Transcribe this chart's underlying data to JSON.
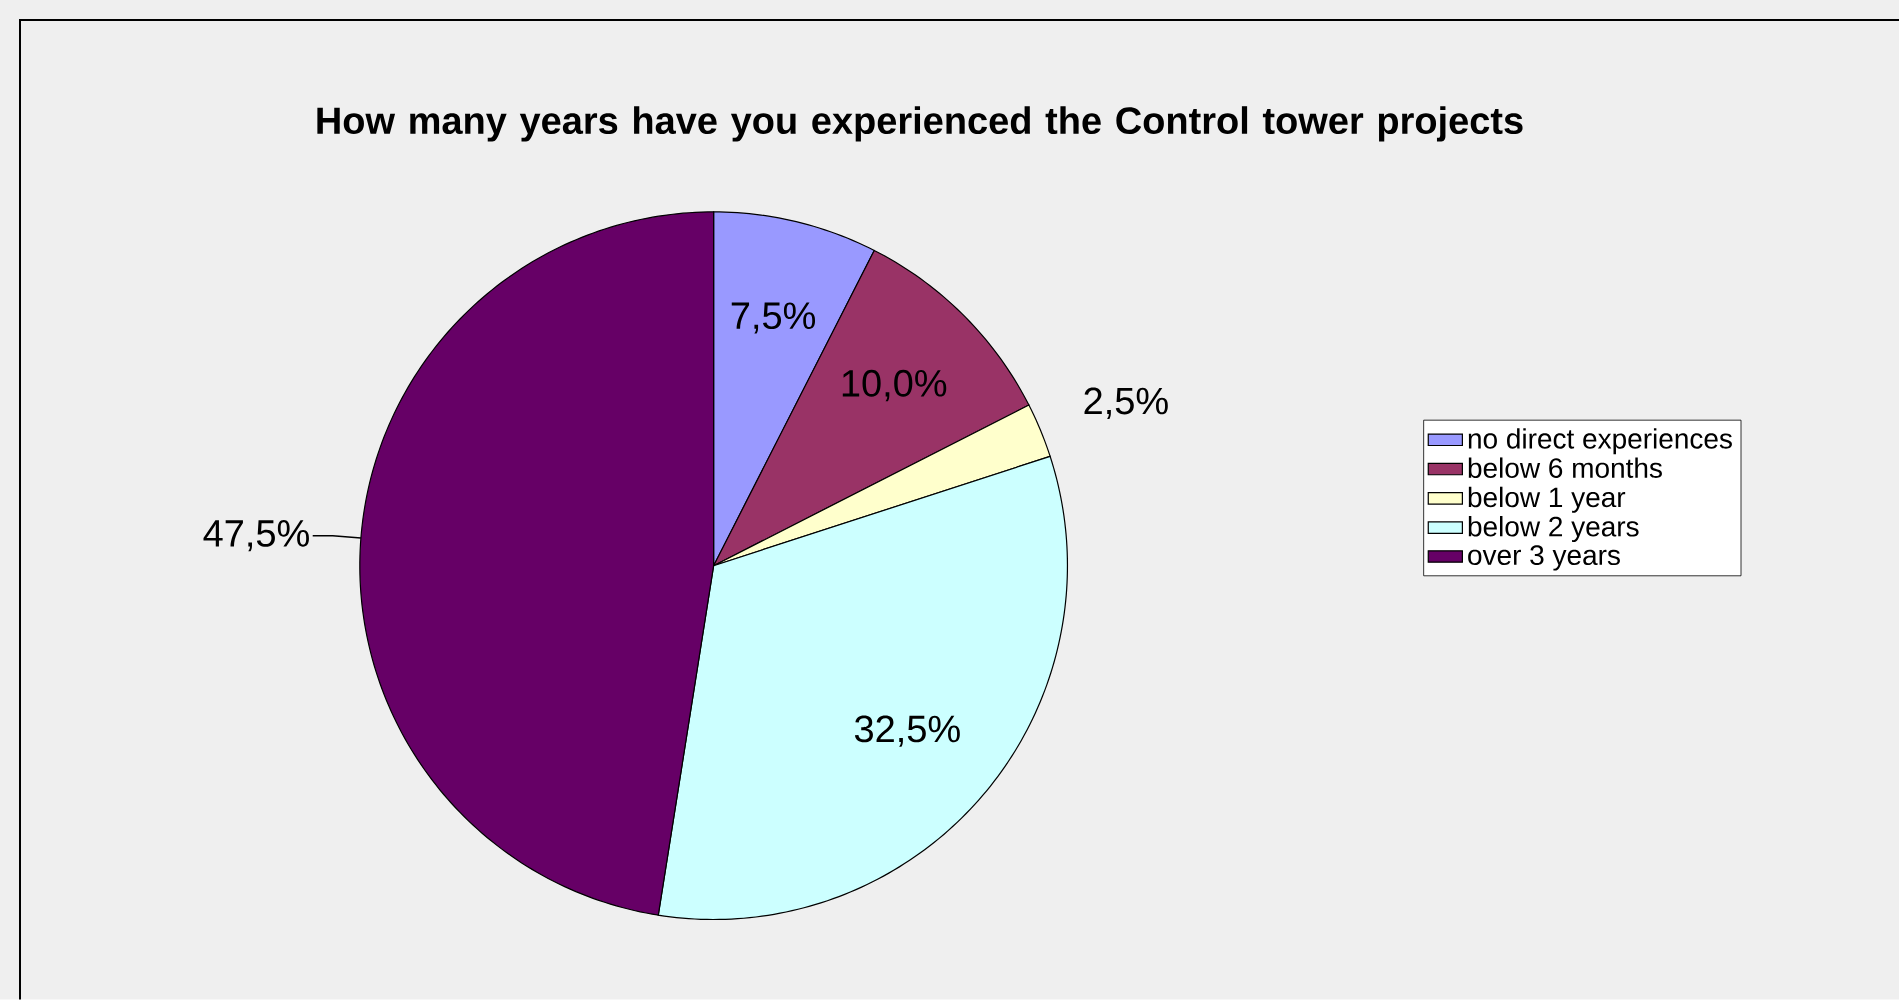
{
  "chart_data": {
    "type": "pie",
    "title": "How many years have you experienced the Control tower projects",
    "categories": [
      "no direct experiences",
      "below 6 months",
      "below 1 year",
      "below 2 years",
      "over 3 years"
    ],
    "values": [
      7.5,
      10.0,
      2.5,
      32.5,
      47.5
    ],
    "value_labels": [
      "7,5%",
      "10,0%",
      "2,5%",
      "32,5%",
      "47,5%"
    ],
    "colors": [
      "#9999ff",
      "#993366",
      "#ffffcc",
      "#ccffff",
      "#660066"
    ],
    "legend": "right"
  }
}
